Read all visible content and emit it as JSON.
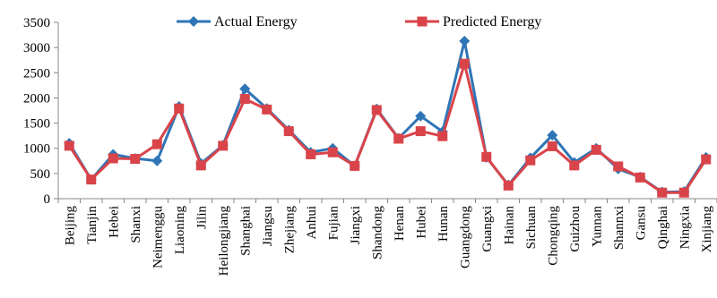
{
  "chart_data": {
    "type": "line",
    "title": "",
    "xlabel": "",
    "ylabel": "",
    "ylim": [
      0,
      3500
    ],
    "yticks": [
      0,
      500,
      1000,
      1500,
      2000,
      2500,
      3000,
      3500
    ],
    "grid": false,
    "legend_position": "top",
    "categories": [
      "Beijing",
      "Tianjin",
      "Hebei",
      "Shanxi",
      "Neimenggu",
      "Liaoning",
      "Jilin",
      "Heilongjiang",
      "Shanghai",
      "Jiangsu",
      "Zhejiang",
      "Anhui",
      "Fujian",
      "Jiangxi",
      "Shandong",
      "Henan",
      "Hubei",
      "Hunan",
      "Guangdong",
      "Guangxi",
      "Hainan",
      "Sichuan",
      "Chongqing",
      "Guizhou",
      "Yunnan",
      "Shanxi",
      "Gansu",
      "Qinghai",
      "Ningxia",
      "Xinjiang"
    ],
    "category_labels_printed": [
      "Beijing",
      "Tianjin",
      "Hebei",
      "Shanxi",
      "Neimenggu",
      "Liaoning",
      "Jilin",
      "Heilongjiang",
      "Shanghai",
      "Jiangsu",
      "Zhejiang",
      "Anhui",
      "Fujian",
      "Jiangxi",
      "Shandong",
      "Henan",
      "Hubei",
      "Hunan",
      "Guangdong",
      "Guangxi",
      "Hainan",
      "Sichuan",
      "Chongqing",
      "Guizhou",
      "Yunnan",
      "Shannxi",
      "Gansu",
      "Qinghai",
      "Ningxia",
      "Xinjiang"
    ],
    "series": [
      {
        "name": "Actual Energy",
        "color": "#2E75B6",
        "marker": "diamond",
        "values": [
          1100,
          380,
          880,
          800,
          750,
          1830,
          700,
          1060,
          2180,
          1790,
          1360,
          920,
          1000,
          650,
          1780,
          1200,
          1640,
          1330,
          3130,
          820,
          270,
          810,
          1260,
          720,
          1000,
          590,
          430,
          130,
          140,
          820
        ]
      },
      {
        "name": "Predicted Energy",
        "color": "#D9444A",
        "marker": "square",
        "values": [
          1050,
          380,
          800,
          790,
          1080,
          1790,
          660,
          1050,
          1980,
          1770,
          1340,
          880,
          920,
          650,
          1760,
          1190,
          1340,
          1240,
          2680,
          830,
          260,
          760,
          1040,
          660,
          970,
          640,
          420,
          120,
          120,
          780
        ]
      }
    ]
  }
}
